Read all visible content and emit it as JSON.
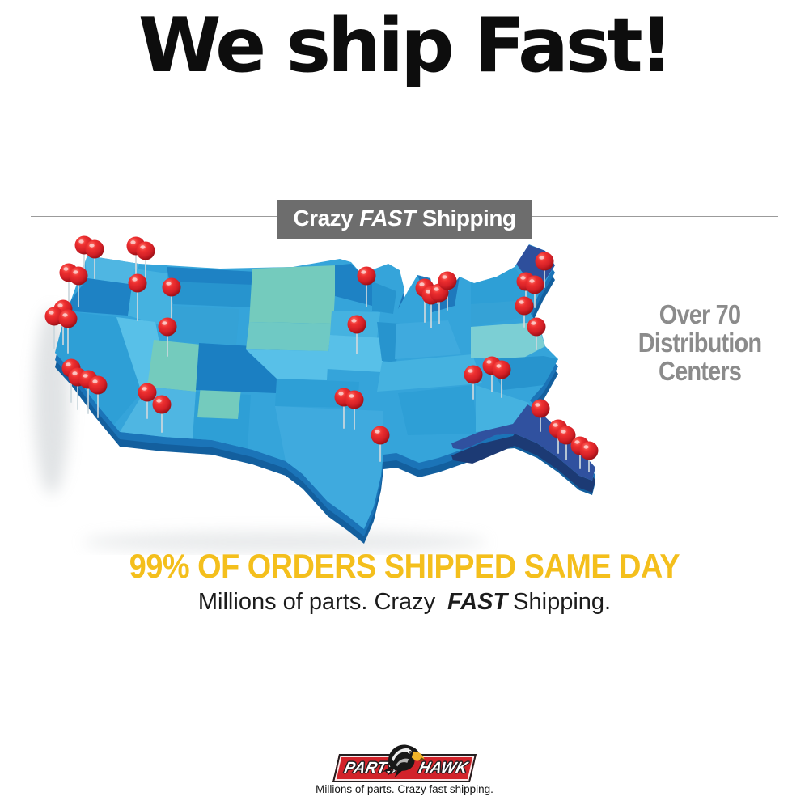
{
  "title": "We ship Fast!",
  "divider_banner": {
    "prefix": "Crazy",
    "fast": "FAST",
    "suffix": "Shipping",
    "background": "#6d6d6d",
    "text_color": "#ffffff"
  },
  "map": {
    "caption_lines": [
      "Over 70",
      "Distribution",
      "Centers"
    ],
    "caption_color": "#8b8b8b",
    "pin_color": "#d21f26",
    "palette": {
      "base_blue": "#35A4DA",
      "dark_blue": "#1B7FC2",
      "light_blue": "#58C0E8",
      "teal": "#74CBBD",
      "pale_teal": "#7CCFD4",
      "navy_florida": "#30519F",
      "extrusion": "#1B74B8"
    },
    "pins": [
      [
        82,
        17,
        40
      ],
      [
        95,
        22,
        36
      ],
      [
        146,
        18,
        44
      ],
      [
        158,
        24,
        40
      ],
      [
        63,
        51,
        42
      ],
      [
        75,
        55,
        38
      ],
      [
        148,
        64,
        46
      ],
      [
        190,
        69,
        38
      ],
      [
        56,
        96,
        44
      ],
      [
        45,
        105,
        40
      ],
      [
        62,
        108,
        42
      ],
      [
        185,
        118,
        36
      ],
      [
        66,
        169,
        42
      ],
      [
        74,
        180,
        40
      ],
      [
        87,
        183,
        42
      ],
      [
        99,
        190,
        40
      ],
      [
        160,
        199,
        32
      ],
      [
        178,
        214,
        34
      ],
      [
        431,
        55,
        38
      ],
      [
        503,
        70,
        42
      ],
      [
        511,
        79,
        40
      ],
      [
        521,
        76,
        38
      ],
      [
        531,
        61,
        36
      ],
      [
        419,
        115,
        36
      ],
      [
        403,
        205,
        38
      ],
      [
        416,
        208,
        36
      ],
      [
        448,
        252,
        32
      ],
      [
        651,
        37,
        32
      ],
      [
        628,
        62,
        30
      ],
      [
        639,
        66,
        28
      ],
      [
        626,
        92,
        26
      ],
      [
        641,
        118,
        28
      ],
      [
        563,
        177,
        30
      ],
      [
        586,
        166,
        32
      ],
      [
        598,
        171,
        34
      ],
      [
        646,
        219,
        28
      ],
      [
        668,
        244,
        30
      ],
      [
        678,
        252,
        30
      ],
      [
        695,
        265,
        28
      ],
      [
        706,
        271,
        26
      ]
    ]
  },
  "headline": "99% OF ORDERS SHIPPED SAME DAY",
  "headline_color": "#F4BF1C",
  "subheadline": {
    "prefix": "Millions of parts. Crazy",
    "fast": "FAST",
    "suffix": "Shipping."
  },
  "logo": {
    "left_word": "PARTS",
    "right_word": "HAWK",
    "tagline": "Millions of parts. Crazy fast shipping.",
    "bar_color": "#D2232A"
  }
}
